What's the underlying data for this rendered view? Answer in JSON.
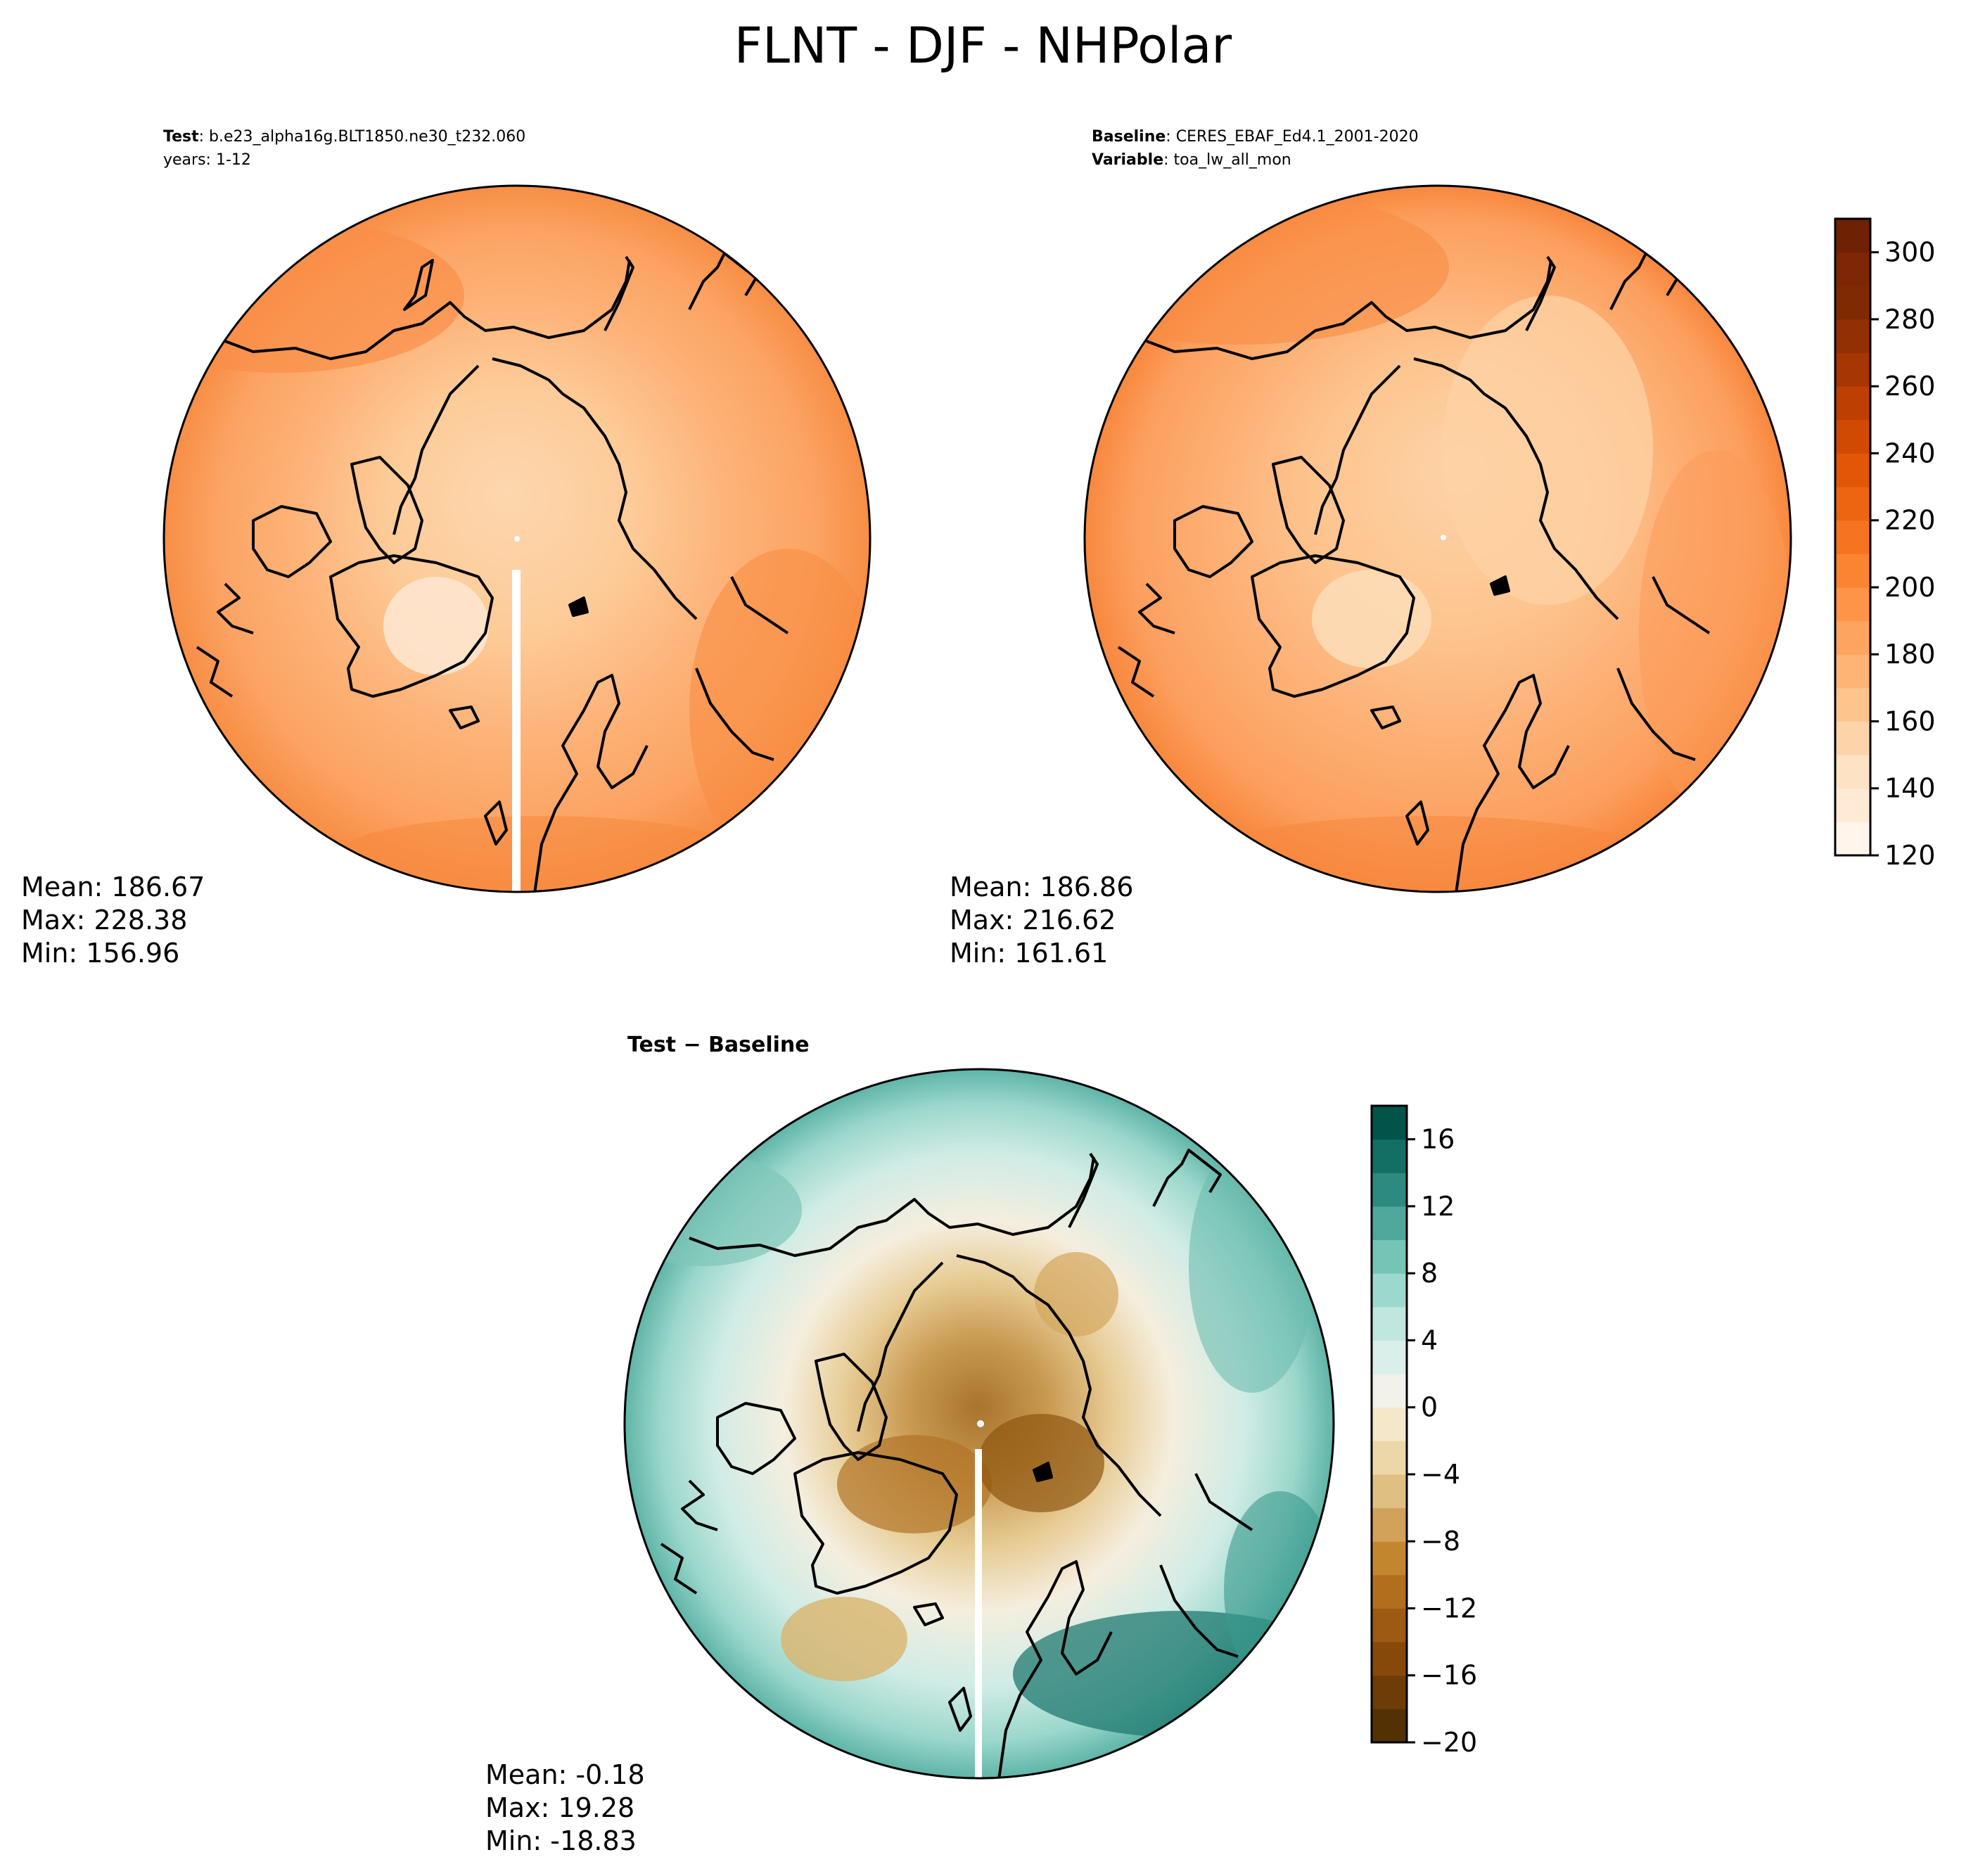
{
  "title": "FLNT - DJF - NHPolar",
  "panels": {
    "test": {
      "line1_key": "Test",
      "line1_value": ": b.e23_alpha16g.BLT1850.ne30_t232.060",
      "line2": "years: 1-12",
      "stats": {
        "mean": "Mean: 186.67",
        "max": "Max: 228.38",
        "min": "Min: 156.96"
      }
    },
    "baseline": {
      "line1_key": "Baseline",
      "line1_value": ": CERES_EBAF_Ed4.1_2001-2020",
      "line2_key": "Variable",
      "line2_value": ": toa_lw_all_mon",
      "stats": {
        "mean": "Mean: 186.86",
        "max": "Max: 216.62",
        "min": "Min: 161.61"
      }
    },
    "difference": {
      "heading": "Test − Baseline",
      "stats": {
        "mean": "Mean: -0.18",
        "max": "Max: 19.28",
        "min": "Min: -18.83"
      }
    }
  },
  "colorbars": {
    "main": {
      "ticks": [
        "120",
        "140",
        "160",
        "180",
        "200",
        "220",
        "240",
        "260",
        "280",
        "300"
      ],
      "tick_values": [
        120,
        140,
        160,
        180,
        200,
        220,
        240,
        260,
        280,
        300
      ],
      "range": [
        120,
        310
      ],
      "colors": [
        "#fff5eb",
        "#feead5",
        "#fee2c4",
        "#fdd4a9",
        "#fdc48e",
        "#fdb475",
        "#fda45e",
        "#fd9447",
        "#fb8433",
        "#f57321",
        "#ee6511",
        "#e15607",
        "#d14a03",
        "#bd4002",
        "#a63603",
        "#923003",
        "#802a03",
        "#7f2704",
        "#6e2203"
      ]
    },
    "diff": {
      "ticks": [
        "−20",
        "−16",
        "−12",
        "−8",
        "−4",
        "0",
        "4",
        "8",
        "12",
        "16"
      ],
      "tick_values": [
        -20,
        -16,
        -12,
        -8,
        -4,
        0,
        4,
        8,
        12,
        16
      ],
      "range": [
        -20,
        18
      ],
      "colors": [
        "#543005",
        "#6d3c07",
        "#86490a",
        "#9c5a12",
        "#b16e1d",
        "#c2862f",
        "#d2a25a",
        "#e0bf82",
        "#ecd7a9",
        "#f5e8c9",
        "#f2f1ea",
        "#daeeea",
        "#bfe6df",
        "#9cd8cd",
        "#76c4b6",
        "#4fa89b",
        "#2c8a80",
        "#136e64",
        "#01544a"
      ]
    }
  }
}
